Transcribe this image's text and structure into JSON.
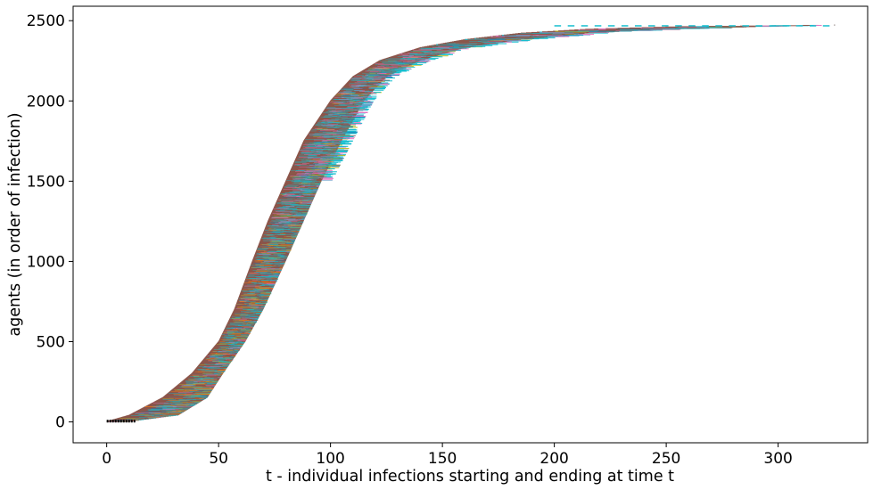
{
  "chart_data": {
    "type": "scatter",
    "title": "",
    "xlabel": "t - individual infections starting and ending at time t",
    "ylabel": "agents (in order of infection)",
    "xlim": [
      -15,
      340
    ],
    "ylim": [
      -130,
      2590
    ],
    "xticks": [
      0,
      50,
      100,
      150,
      200,
      250,
      300
    ],
    "yticks": [
      0,
      500,
      1000,
      1500,
      2000,
      2500
    ],
    "grid": false,
    "legend": "none",
    "total_agents": 2470,
    "final_time": 325,
    "description_of_marks": "Each agent (row, ordered by infection time) is drawn as a short horizontal segment from its infection start time to end time, coloured by infection state.",
    "infection_curve": {
      "agents": [
        0,
        40,
        150,
        300,
        500,
        700,
        1000,
        1250,
        1500,
        1750,
        2000,
        2150,
        2250,
        2330,
        2380,
        2420,
        2445,
        2460,
        2470
      ],
      "start_time": [
        0,
        10,
        25,
        38,
        50,
        57,
        65,
        72,
        80,
        88,
        100,
        110,
        122,
        140,
        160,
        185,
        215,
        255,
        325
      ],
      "end_time": [
        10,
        32,
        45,
        52,
        62,
        70,
        80,
        88,
        96,
        105,
        115,
        125,
        140,
        160,
        185,
        215,
        250,
        290,
        325
      ]
    },
    "colors": [
      "#8c564b",
      "#17becf",
      "#ff7f0e",
      "#e377c2",
      "#bcbd22",
      "#7f7f7f",
      "#1f77b4",
      "#000000"
    ]
  }
}
